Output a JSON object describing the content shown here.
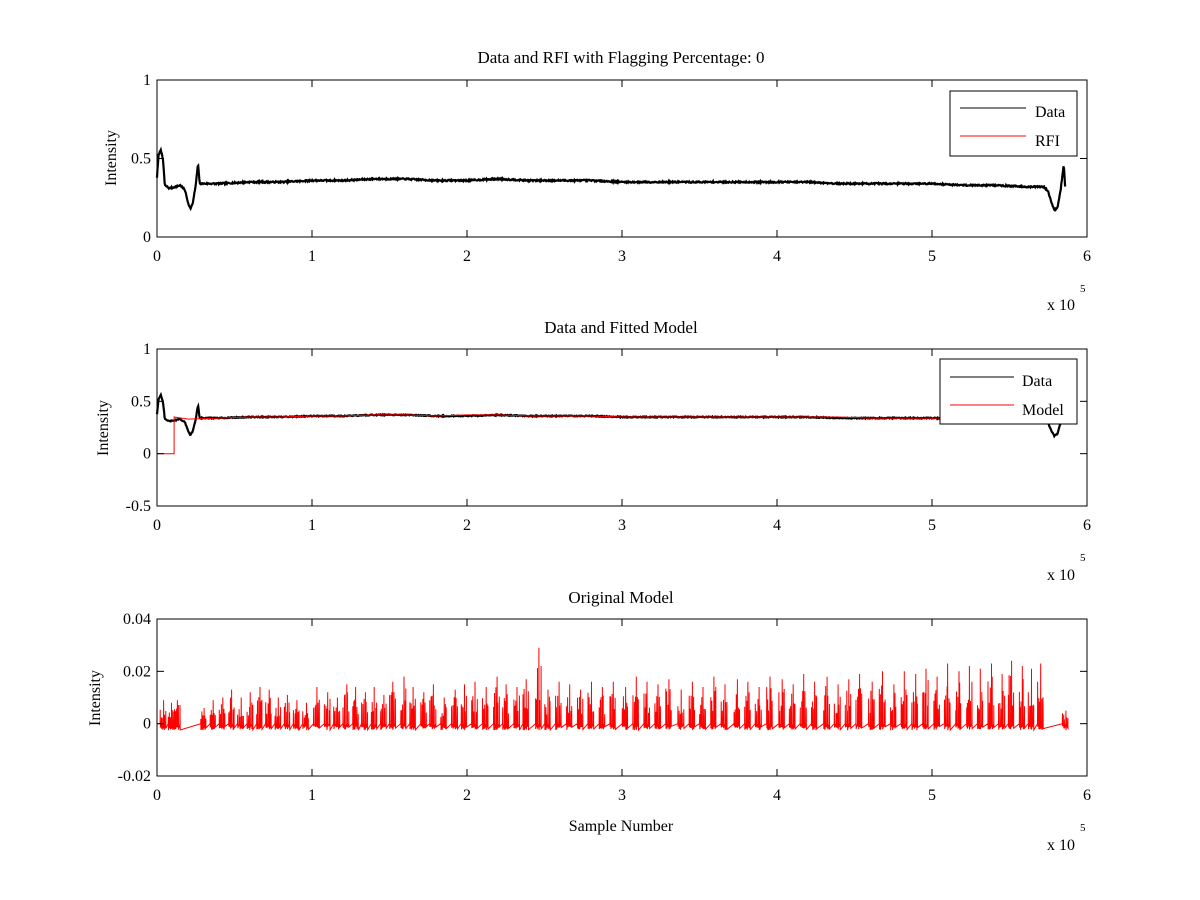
{
  "chart_data": [
    {
      "type": "line",
      "title": "Data and RFI with Flagging Percentage: 0",
      "xlabel": "",
      "ylabel": "Intensity",
      "xlim": [
        0,
        600000
      ],
      "ylim": [
        0,
        1
      ],
      "xticks": [
        "0",
        "1",
        "2",
        "3",
        "4",
        "5",
        "6"
      ],
      "yticks": [
        "0",
        "0.5",
        "1"
      ],
      "x_multiplier": "x 10",
      "x_multiplier_exp": "5",
      "legend_position": "top-right",
      "grid": false,
      "series": [
        {
          "name": "Data",
          "color": "#000000",
          "points": [
            [
              0,
              0.38
            ],
            [
              1000,
              0.52
            ],
            [
              2500,
              0.56
            ],
            [
              4000,
              0.48
            ],
            [
              5000,
              0.33
            ],
            [
              8000,
              0.31
            ],
            [
              12000,
              0.32
            ],
            [
              15000,
              0.33
            ],
            [
              18000,
              0.3
            ],
            [
              20000,
              0.22
            ],
            [
              21500,
              0.18
            ],
            [
              23000,
              0.21
            ],
            [
              25000,
              0.33
            ],
            [
              26500,
              0.47
            ],
            [
              27500,
              0.34
            ],
            [
              40000,
              0.34
            ],
            [
              60000,
              0.35
            ],
            [
              80000,
              0.35
            ],
            [
              100000,
              0.36
            ],
            [
              120000,
              0.36
            ],
            [
              140000,
              0.37
            ],
            [
              160000,
              0.37
            ],
            [
              180000,
              0.36
            ],
            [
              200000,
              0.36
            ],
            [
              220000,
              0.37
            ],
            [
              240000,
              0.36
            ],
            [
              260000,
              0.36
            ],
            [
              280000,
              0.36
            ],
            [
              300000,
              0.35
            ],
            [
              320000,
              0.35
            ],
            [
              340000,
              0.35
            ],
            [
              360000,
              0.35
            ],
            [
              380000,
              0.35
            ],
            [
              400000,
              0.35
            ],
            [
              420000,
              0.35
            ],
            [
              440000,
              0.34
            ],
            [
              460000,
              0.34
            ],
            [
              480000,
              0.34
            ],
            [
              500000,
              0.34
            ],
            [
              520000,
              0.33
            ],
            [
              540000,
              0.33
            ],
            [
              560000,
              0.32
            ],
            [
              572000,
              0.32
            ],
            [
              575000,
              0.29
            ],
            [
              577000,
              0.22
            ],
            [
              579000,
              0.17
            ],
            [
              581000,
              0.19
            ],
            [
              583000,
              0.3
            ],
            [
              585000,
              0.46
            ],
            [
              586000,
              0.31
            ]
          ]
        },
        {
          "name": "RFI",
          "color": "#ff0000",
          "points": []
        }
      ]
    },
    {
      "type": "line",
      "title": "Data and Fitted Model",
      "xlabel": "",
      "ylabel": "Intensity",
      "xlim": [
        0,
        600000
      ],
      "ylim": [
        -0.5,
        1
      ],
      "xticks": [
        "0",
        "1",
        "2",
        "3",
        "4",
        "5",
        "6"
      ],
      "yticks": [
        "-0.5",
        "0",
        "0.5",
        "1"
      ],
      "x_multiplier": "x 10",
      "x_multiplier_exp": "5",
      "legend_position": "top-right",
      "grid": false,
      "series": [
        {
          "name": "Data",
          "color": "#000000",
          "points": [
            [
              0,
              0.38
            ],
            [
              1000,
              0.52
            ],
            [
              2500,
              0.56
            ],
            [
              4000,
              0.48
            ],
            [
              5000,
              0.33
            ],
            [
              8000,
              0.31
            ],
            [
              12000,
              0.32
            ],
            [
              15000,
              0.33
            ],
            [
              18000,
              0.3
            ],
            [
              20000,
              0.22
            ],
            [
              21500,
              0.18
            ],
            [
              23000,
              0.21
            ],
            [
              25000,
              0.33
            ],
            [
              26500,
              0.47
            ],
            [
              27500,
              0.34
            ],
            [
              40000,
              0.34
            ],
            [
              60000,
              0.35
            ],
            [
              80000,
              0.35
            ],
            [
              100000,
              0.36
            ],
            [
              120000,
              0.36
            ],
            [
              140000,
              0.37
            ],
            [
              160000,
              0.37
            ],
            [
              180000,
              0.36
            ],
            [
              200000,
              0.36
            ],
            [
              220000,
              0.37
            ],
            [
              240000,
              0.36
            ],
            [
              260000,
              0.36
            ],
            [
              280000,
              0.36
            ],
            [
              300000,
              0.35
            ],
            [
              320000,
              0.35
            ],
            [
              340000,
              0.35
            ],
            [
              360000,
              0.35
            ],
            [
              380000,
              0.35
            ],
            [
              400000,
              0.35
            ],
            [
              420000,
              0.35
            ],
            [
              440000,
              0.34
            ],
            [
              460000,
              0.34
            ],
            [
              480000,
              0.34
            ],
            [
              500000,
              0.34
            ],
            [
              520000,
              0.33
            ],
            [
              540000,
              0.33
            ],
            [
              560000,
              0.32
            ],
            [
              572000,
              0.32
            ],
            [
              575000,
              0.29
            ],
            [
              577000,
              0.22
            ],
            [
              579000,
              0.17
            ],
            [
              581000,
              0.19
            ],
            [
              583000,
              0.3
            ],
            [
              585000,
              0.46
            ],
            [
              586000,
              0.31
            ]
          ]
        },
        {
          "name": "Model",
          "color": "#ff0000",
          "points": [
            [
              0,
              0
            ],
            [
              11000,
              0
            ],
            [
              11000,
              0.35
            ],
            [
              20000,
              0.33
            ],
            [
              40000,
              0.34
            ],
            [
              60000,
              0.35
            ],
            [
              80000,
              0.35
            ],
            [
              100000,
              0.36
            ],
            [
              120000,
              0.36
            ],
            [
              140000,
              0.37
            ],
            [
              160000,
              0.37
            ],
            [
              180000,
              0.36
            ],
            [
              200000,
              0.37
            ],
            [
              220000,
              0.37
            ],
            [
              240000,
              0.36
            ],
            [
              260000,
              0.36
            ],
            [
              280000,
              0.36
            ],
            [
              300000,
              0.35
            ],
            [
              320000,
              0.35
            ],
            [
              340000,
              0.35
            ],
            [
              360000,
              0.35
            ],
            [
              380000,
              0.35
            ],
            [
              400000,
              0.35
            ],
            [
              420000,
              0.35
            ],
            [
              440000,
              0.35
            ],
            [
              460000,
              0.34
            ],
            [
              480000,
              0.34
            ],
            [
              500000,
              0.34
            ],
            [
              520000,
              0.34
            ],
            [
              540000,
              0.34
            ],
            [
              560000,
              0.34
            ],
            [
              586000,
              0.34
            ]
          ]
        }
      ]
    },
    {
      "type": "line",
      "title": "Original Model",
      "xlabel": "Sample Number",
      "ylabel": "Intensity",
      "xlim": [
        0,
        600000
      ],
      "ylim": [
        -0.02,
        0.04
      ],
      "xticks": [
        "0",
        "1",
        "2",
        "3",
        "4",
        "5",
        "6"
      ],
      "yticks": [
        "-0.02",
        "0",
        "0.02",
        "0.04"
      ],
      "x_multiplier": "x 10",
      "x_multiplier_exp": "5",
      "grid": false,
      "series": [
        {
          "name": "",
          "color": "#ff0000",
          "baseline": 0,
          "span": [
            0,
            586000
          ],
          "spikes": [
            [
              4000,
              0.009
            ],
            [
              9000,
              0.008
            ],
            [
              13000,
              0.009
            ],
            [
              30000,
              0.006
            ],
            [
              36000,
              0.009
            ],
            [
              42000,
              0.01
            ],
            [
              48000,
              0.013
            ],
            [
              54000,
              0.01
            ],
            [
              60000,
              0.012
            ],
            [
              66000,
              0.014
            ],
            [
              72000,
              0.013
            ],
            [
              78000,
              0.01
            ],
            [
              84000,
              0.011
            ],
            [
              90000,
              0.009
            ],
            [
              96000,
              0.008
            ],
            [
              103000,
              0.014
            ],
            [
              110000,
              0.012
            ],
            [
              116000,
              0.01
            ],
            [
              122000,
              0.015
            ],
            [
              128000,
              0.014
            ],
            [
              134000,
              0.012
            ],
            [
              140000,
              0.014
            ],
            [
              146000,
              0.011
            ],
            [
              152000,
              0.016
            ],
            [
              159000,
              0.018
            ],
            [
              165000,
              0.014
            ],
            [
              172000,
              0.012
            ],
            [
              178000,
              0.015
            ],
            [
              185000,
              0.01
            ],
            [
              192000,
              0.013
            ],
            [
              198000,
              0.015
            ],
            [
              205000,
              0.016
            ],
            [
              212000,
              0.014
            ],
            [
              219000,
              0.018
            ],
            [
              225000,
              0.015
            ],
            [
              232000,
              0.014
            ],
            [
              238000,
              0.017
            ],
            [
              246000,
              0.029
            ],
            [
              252000,
              0.013
            ],
            [
              259000,
              0.016
            ],
            [
              266000,
              0.015
            ],
            [
              273000,
              0.013
            ],
            [
              280000,
              0.016
            ],
            [
              287000,
              0.014
            ],
            [
              294000,
              0.016
            ],
            [
              302000,
              0.014
            ],
            [
              309000,
              0.018
            ],
            [
              316000,
              0.016
            ],
            [
              323000,
              0.015
            ],
            [
              330000,
              0.017
            ],
            [
              338000,
              0.013
            ],
            [
              345000,
              0.016
            ],
            [
              352000,
              0.014
            ],
            [
              359000,
              0.018
            ],
            [
              366000,
              0.015
            ],
            [
              374000,
              0.017
            ],
            [
              381000,
              0.016
            ],
            [
              388000,
              0.014
            ],
            [
              395000,
              0.018
            ],
            [
              403000,
              0.017
            ],
            [
              410000,
              0.015
            ],
            [
              417000,
              0.019
            ],
            [
              424000,
              0.016
            ],
            [
              432000,
              0.018
            ],
            [
              439000,
              0.015
            ],
            [
              446000,
              0.017
            ],
            [
              453000,
              0.019
            ],
            [
              461000,
              0.016
            ],
            [
              468000,
              0.02
            ],
            [
              475000,
              0.015
            ],
            [
              482000,
              0.02
            ],
            [
              489000,
              0.019
            ],
            [
              496000,
              0.021
            ],
            [
              503000,
              0.018
            ],
            [
              510000,
              0.023
            ],
            [
              517000,
              0.02
            ],
            [
              524000,
              0.022
            ],
            [
              531000,
              0.021
            ],
            [
              538000,
              0.023
            ],
            [
              545000,
              0.019
            ],
            [
              551000,
              0.024
            ],
            [
              558000,
              0.022
            ],
            [
              564000,
              0.021
            ],
            [
              570000,
              0.023
            ],
            [
              586000,
              0.005
            ]
          ]
        }
      ]
    }
  ]
}
